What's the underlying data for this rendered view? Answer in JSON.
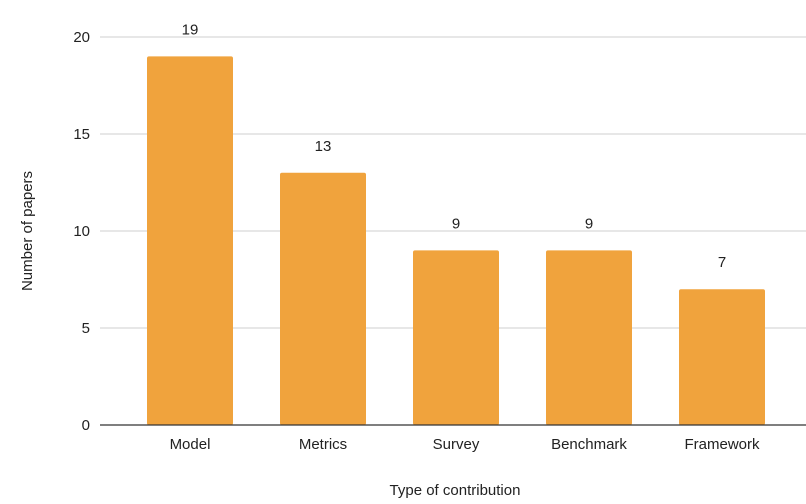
{
  "chart_data": {
    "type": "bar",
    "categories": [
      "Model",
      "Metrics",
      "Survey",
      "Benchmark",
      "Framework"
    ],
    "values": [
      19,
      13,
      9,
      9,
      7
    ],
    "title": "",
    "xlabel": "Type of contribution",
    "ylabel": "Number of papers",
    "ylim": [
      0,
      20
    ],
    "yticks": [
      0,
      5,
      10,
      15,
      20
    ],
    "grid": true,
    "data_labels": true,
    "bar_color": "#F0A33D"
  }
}
